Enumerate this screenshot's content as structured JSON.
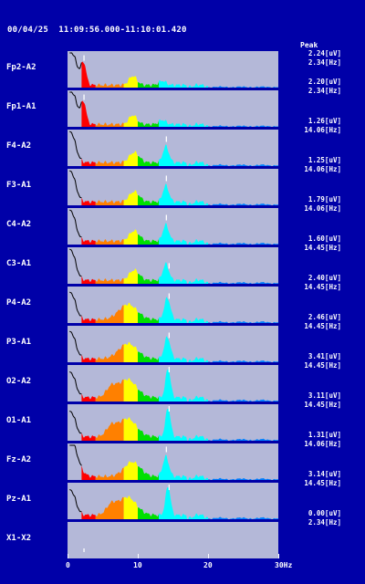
{
  "header": {
    "date": "00/04/25",
    "time_range": "11:09:56.000-11:10:01.420"
  },
  "peak_title": "Peak",
  "colors": {
    "background": "#0000a8",
    "plot_bg": "#b4b8d8",
    "bands": [
      "#ff0000",
      "#ff8000",
      "#ffff00",
      "#00e000",
      "#00ffff",
      "#0080ff"
    ]
  },
  "bands_hz": [
    2,
    4,
    8,
    10,
    13,
    20,
    30
  ],
  "channels": [
    {
      "label": "Fp2-A2",
      "peak_uv": "2.24[uV]",
      "peak_hz": "2.34[Hz]",
      "peak_freq": 2.34,
      "profile": "frontal"
    },
    {
      "label": "Fp1-A1",
      "peak_uv": "2.20[uV]",
      "peak_hz": "2.34[Hz]",
      "peak_freq": 2.34,
      "profile": "frontal"
    },
    {
      "label": "F4-A2",
      "peak_uv": "1.26[uV]",
      "peak_hz": "14.06[Hz]",
      "peak_freq": 14.06,
      "profile": "mid"
    },
    {
      "label": "F3-A1",
      "peak_uv": "1.25[uV]",
      "peak_hz": "14.06[Hz]",
      "peak_freq": 14.06,
      "profile": "mid"
    },
    {
      "label": "C4-A2",
      "peak_uv": "1.79[uV]",
      "peak_hz": "14.06[Hz]",
      "peak_freq": 14.06,
      "profile": "mid"
    },
    {
      "label": "C3-A1",
      "peak_uv": "1.60[uV]",
      "peak_hz": "14.45[Hz]",
      "peak_freq": 14.45,
      "profile": "mid"
    },
    {
      "label": "P4-A2",
      "peak_uv": "2.40[uV]",
      "peak_hz": "14.45[Hz]",
      "peak_freq": 14.45,
      "profile": "post"
    },
    {
      "label": "P3-A1",
      "peak_uv": "2.46[uV]",
      "peak_hz": "14.45[Hz]",
      "peak_freq": 14.45,
      "profile": "post"
    },
    {
      "label": "O2-A2",
      "peak_uv": "3.41[uV]",
      "peak_hz": "14.45[Hz]",
      "peak_freq": 14.45,
      "profile": "occ"
    },
    {
      "label": "O1-A1",
      "peak_uv": "3.11[uV]",
      "peak_hz": "14.45[Hz]",
      "peak_freq": 14.45,
      "profile": "occ"
    },
    {
      "label": "Fz-A2",
      "peak_uv": "1.31[uV]",
      "peak_hz": "14.06[Hz]",
      "peak_freq": 14.06,
      "profile": "fz"
    },
    {
      "label": "Pz-A1",
      "peak_uv": "3.14[uV]",
      "peak_hz": "14.45[Hz]",
      "peak_freq": 14.45,
      "profile": "occ"
    },
    {
      "label": "X1-X2",
      "peak_uv": "0.00[uV]",
      "peak_hz": "2.34[Hz]",
      "peak_freq": 2.34,
      "profile": "flat"
    }
  ],
  "axis": {
    "min_hz": 0,
    "max_hz": 30,
    "ticks": [
      0,
      10,
      20,
      30
    ],
    "tick_labels": [
      "0",
      "10",
      "20",
      "30Hz"
    ]
  }
}
